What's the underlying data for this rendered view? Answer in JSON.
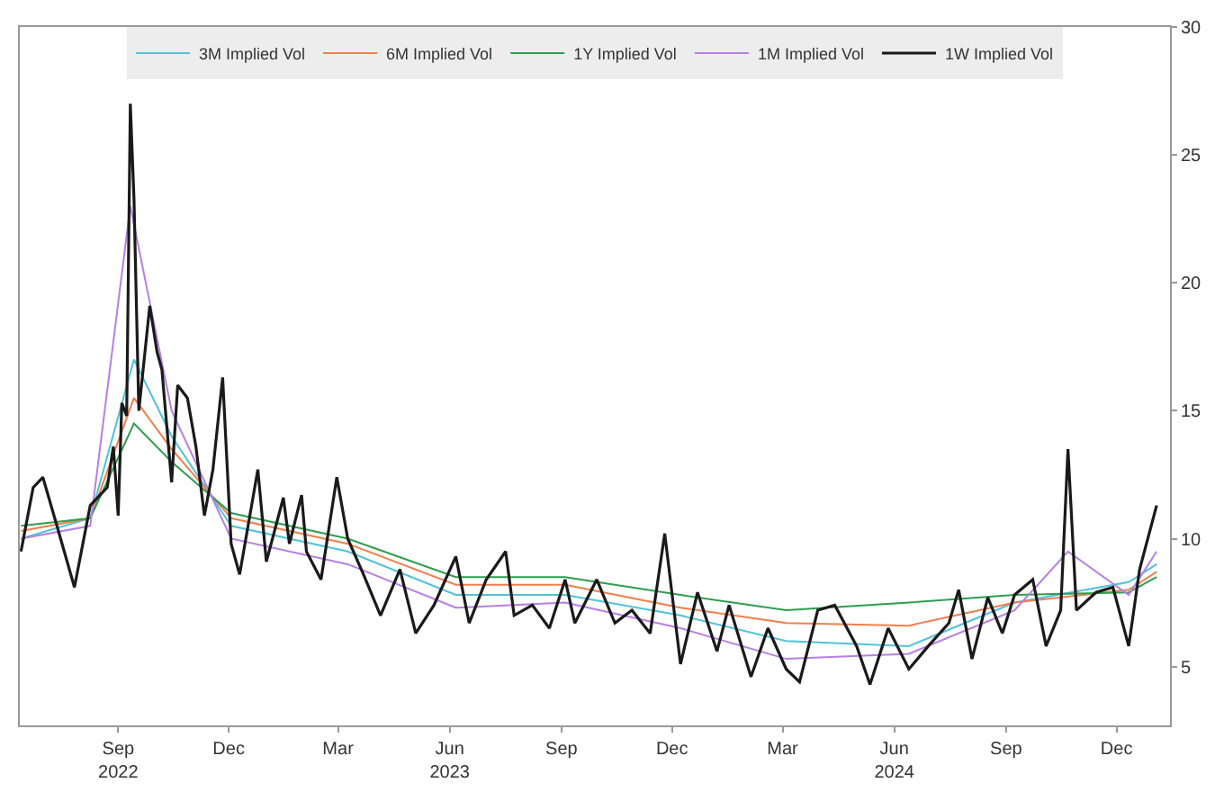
{
  "chart_data": {
    "type": "line",
    "legend": "top",
    "grid": false,
    "marker": "none",
    "line_style": "solid",
    "xlim": [
      "2022-06-12",
      "2025-01-14"
    ],
    "ylim": [
      2.7,
      30
    ],
    "xticks": [
      {
        "value": "2022-09-01",
        "label": "Sep\n2022"
      },
      {
        "value": "2022-12-01",
        "label": "Dec"
      },
      {
        "value": "2023-03-01",
        "label": "Mar"
      },
      {
        "value": "2023-06-01",
        "label": "Jun\n2023"
      },
      {
        "value": "2023-09-01",
        "label": "Sep"
      },
      {
        "value": "2023-12-01",
        "label": "Dec"
      },
      {
        "value": "2024-03-01",
        "label": "Mar"
      },
      {
        "value": "2024-06-01",
        "label": "Jun\n2024"
      },
      {
        "value": "2024-09-01",
        "label": "Sep"
      },
      {
        "value": "2024-12-01",
        "label": "Dec"
      }
    ],
    "yticks": [
      5,
      10,
      15,
      20,
      25,
      30
    ],
    "series": [
      {
        "name": "3M Implied Vol",
        "color": "#4fc3d9",
        "x": [
          "2022-06-13",
          "2022-08-09",
          "2022-09-14",
          "2022-10-15",
          "2022-12-03",
          "2023-03-09",
          "2023-06-06",
          "2023-09-04",
          "2023-12-08",
          "2024-03-04",
          "2024-06-13",
          "2024-09-08",
          "2024-12-11",
          "2025-01-03"
        ],
        "values": [
          10,
          10.8,
          17,
          14,
          10.5,
          9.5,
          7.8,
          7.8,
          7,
          6,
          5.8,
          7.5,
          8.3,
          9
        ]
      },
      {
        "name": "6M Implied Vol",
        "color": "#f07f4a",
        "x": [
          "2022-06-13",
          "2022-08-09",
          "2022-09-14",
          "2022-10-15",
          "2022-12-03",
          "2023-03-09",
          "2023-06-06",
          "2023-09-04",
          "2023-12-08",
          "2024-03-04",
          "2024-06-13",
          "2024-09-08",
          "2024-12-11",
          "2025-01-03"
        ],
        "values": [
          10.3,
          10.8,
          15.5,
          13.5,
          10.8,
          9.8,
          8.2,
          8.2,
          7.3,
          6.7,
          6.6,
          7.5,
          8,
          8.7
        ]
      },
      {
        "name": "1Y Implied Vol",
        "color": "#2e9e4f",
        "x": [
          "2022-06-13",
          "2022-08-09",
          "2022-09-14",
          "2022-10-15",
          "2022-12-03",
          "2023-03-09",
          "2023-06-06",
          "2023-09-04",
          "2023-12-08",
          "2024-03-04",
          "2024-06-13",
          "2024-09-08",
          "2024-12-11",
          "2025-01-03"
        ],
        "values": [
          10.5,
          10.8,
          14.5,
          13,
          11,
          10,
          8.5,
          8.5,
          7.8,
          7.2,
          7.5,
          7.8,
          7.9,
          8.5
        ]
      },
      {
        "name": "1M Implied Vol",
        "color": "#b67fe6",
        "x": [
          "2022-06-13",
          "2022-08-09",
          "2022-09-11",
          "2022-10-15",
          "2022-12-03",
          "2023-03-09",
          "2023-06-06",
          "2023-09-04",
          "2023-12-08",
          "2024-03-04",
          "2024-06-13",
          "2024-09-08",
          "2024-10-22",
          "2024-12-11",
          "2025-01-03"
        ],
        "values": [
          10,
          10.5,
          23,
          15,
          10,
          9,
          7.3,
          7.5,
          6.5,
          5.3,
          5.5,
          7.2,
          9.5,
          7.8,
          9.5
        ]
      },
      {
        "name": "1W Implied Vol",
        "color": "#1a1a1a",
        "x": [
          "2022-06-13",
          "2022-06-23",
          "2022-07-01",
          "2022-07-12",
          "2022-07-27",
          "2022-08-09",
          "2022-08-23",
          "2022-08-28",
          "2022-09-01",
          "2022-09-04",
          "2022-09-08",
          "2022-09-11",
          "2022-09-14",
          "2022-09-18",
          "2022-09-27",
          "2022-10-03",
          "2022-10-07",
          "2022-10-15",
          "2022-10-20",
          "2022-10-28",
          "2022-11-04",
          "2022-11-11",
          "2022-11-18",
          "2022-11-26",
          "2022-12-03",
          "2022-12-10",
          "2022-12-25",
          "2023-01-01",
          "2023-01-15",
          "2023-01-20",
          "2023-01-30",
          "2023-02-03",
          "2023-02-15",
          "2023-02-28",
          "2023-03-09",
          "2023-03-22",
          "2023-04-05",
          "2023-04-21",
          "2023-05-04",
          "2023-05-19",
          "2023-06-06",
          "2023-06-17",
          "2023-07-01",
          "2023-07-17",
          "2023-07-24",
          "2023-08-08",
          "2023-08-22",
          "2023-09-04",
          "2023-09-12",
          "2023-09-30",
          "2023-10-15",
          "2023-10-29",
          "2023-11-13",
          "2023-11-25",
          "2023-12-08",
          "2023-12-22",
          "2024-01-07",
          "2024-01-17",
          "2024-02-04",
          "2024-02-18",
          "2024-03-04",
          "2024-03-15",
          "2024-03-30",
          "2024-04-13",
          "2024-05-01",
          "2024-05-12",
          "2024-05-27",
          "2024-06-13",
          "2024-06-29",
          "2024-07-16",
          "2024-07-24",
          "2024-08-04",
          "2024-08-17",
          "2024-08-29",
          "2024-09-08",
          "2024-09-23",
          "2024-10-04",
          "2024-10-16",
          "2024-10-22",
          "2024-10-29",
          "2024-11-14",
          "2024-11-28",
          "2024-12-11",
          "2024-12-20",
          "2025-01-03"
        ],
        "values": [
          9.5,
          12,
          12.4,
          10.6,
          8.1,
          11.3,
          12,
          13.6,
          10.9,
          15.3,
          14.8,
          27,
          23.3,
          15,
          19.1,
          17.3,
          16.6,
          12.2,
          16,
          15.5,
          13.6,
          10.9,
          12.7,
          16.3,
          9.8,
          8.6,
          12.7,
          9.1,
          11.6,
          9.8,
          11.7,
          9.5,
          8.4,
          12.4,
          10,
          8.6,
          7,
          8.8,
          6.3,
          7.4,
          9.3,
          6.7,
          8.4,
          9.5,
          7,
          7.4,
          6.5,
          8.4,
          6.7,
          8.4,
          6.7,
          7.2,
          6.3,
          10.2,
          5.1,
          7.9,
          5.6,
          7.4,
          4.6,
          6.5,
          4.9,
          4.4,
          7.2,
          7.4,
          5.8,
          4.3,
          6.5,
          4.9,
          5.8,
          6.7,
          8,
          5.3,
          7.7,
          6.3,
          7.8,
          8.4,
          5.8,
          7.2,
          13.5,
          7.2,
          7.9,
          8.1,
          5.8,
          8.8,
          11.3
        ]
      }
    ]
  }
}
